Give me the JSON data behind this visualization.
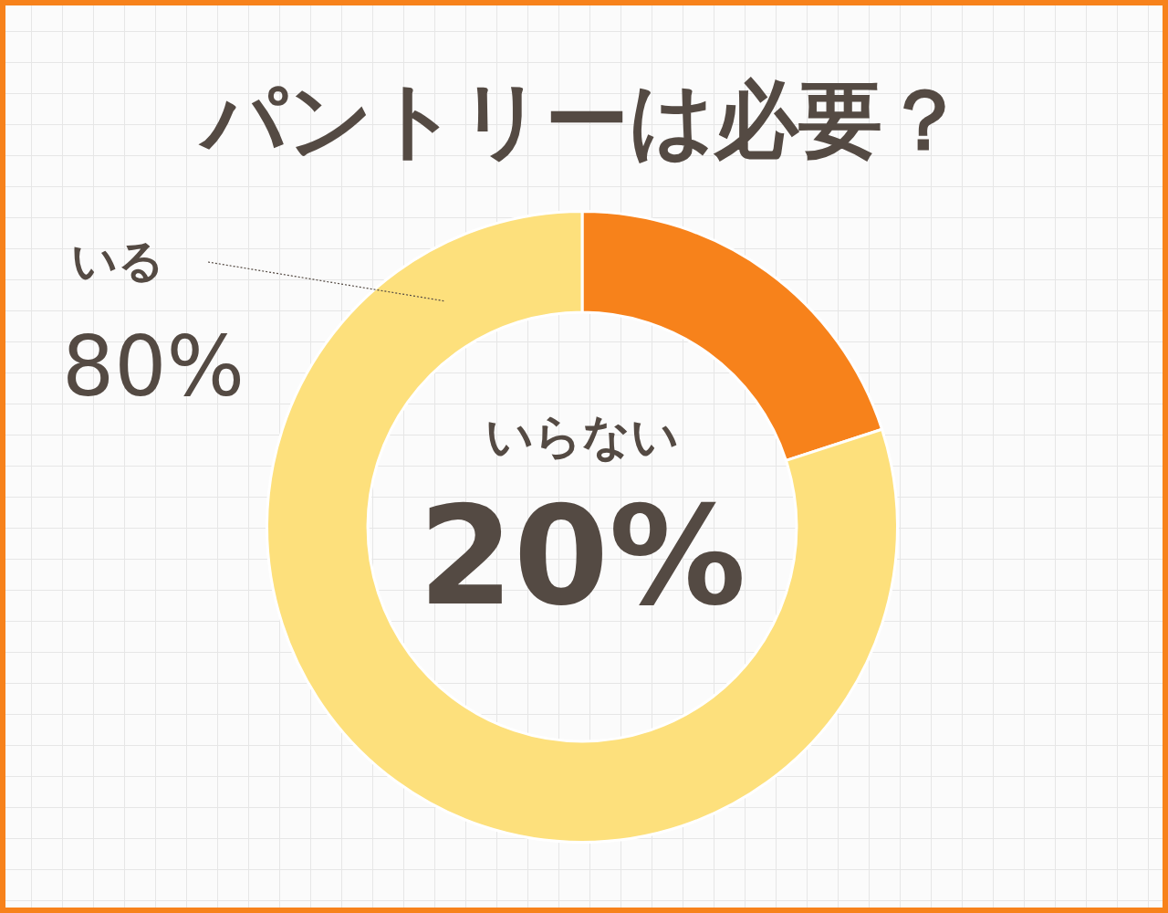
{
  "chart_data": {
    "type": "donut",
    "title": "パントリーは必要？",
    "categories": [
      "いらない",
      "いる"
    ],
    "values": [
      20,
      80
    ],
    "value_labels": [
      "20%",
      "80%"
    ],
    "colors": [
      "#f7821b",
      "#fde07c"
    ],
    "legend": false
  }
}
